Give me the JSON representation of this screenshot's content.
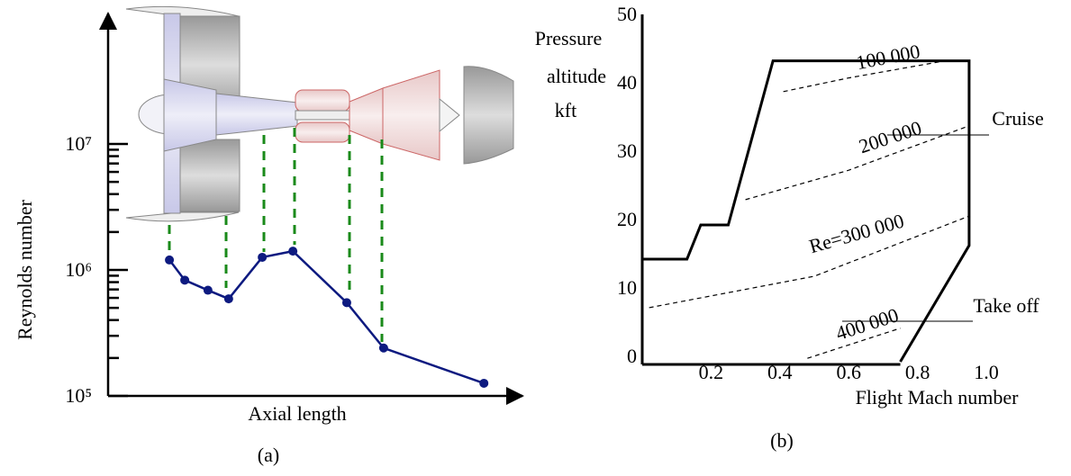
{
  "chart_data": [
    {
      "type": "line",
      "ylabel": "Reynolds number",
      "xlabel": "Axial length",
      "caption": "(a)",
      "log_y": true,
      "color": "#0d1a80",
      "xlim": [
        0,
        1
      ],
      "x": [
        0.148,
        0.185,
        0.241,
        0.291,
        0.372,
        0.446,
        0.576,
        0.665,
        0.907
      ],
      "values": [
        1200000,
        830000,
        690000,
        590000,
        1260000,
        1410000,
        550000,
        240000,
        126000
      ],
      "ylim": [
        100000,
        100000000
      ],
      "yticks": [
        {
          "value": 100000,
          "label": "10⁵"
        },
        {
          "value": 1000000,
          "label": "10⁶"
        },
        {
          "value": 10000000,
          "label": "10⁷"
        }
      ],
      "yticks_minor": [
        200000,
        300000,
        400000,
        500000,
        600000,
        700000,
        800000,
        900000,
        2000000,
        3000000,
        4000000,
        5000000,
        6000000,
        7000000,
        8000000,
        9000000
      ]
    },
    {
      "type": "envelope",
      "ylabel": [
        "Pressure",
        "altitude",
        "kft"
      ],
      "xlabel": "Flight Mach number",
      "caption": "(b)",
      "xlim": [
        0,
        1
      ],
      "ylim": [
        0,
        50
      ],
      "xticks": [
        0.2,
        0.4,
        0.6,
        0.8,
        {
          "value": 1,
          "label": "1.0"
        }
      ],
      "yticks": [
        0,
        10,
        20,
        30,
        40,
        50
      ],
      "envelope": {
        "mach": [
          0,
          0.13,
          0.17,
          0.25,
          0.38,
          0.95,
          0.95,
          0.75
        ],
        "altitude": [
          15,
          15,
          20,
          20,
          44,
          44,
          17,
          0
        ]
      },
      "re_lines": [
        {
          "label": "100 000",
          "mach": [
            0.41,
            0.6,
            0.88
          ],
          "altitude": [
            39.5,
            41.5,
            44
          ]
        },
        {
          "label": "200 000",
          "mach": [
            0.3,
            0.6,
            0.95
          ],
          "altitude": [
            23.7,
            28,
            34.5
          ]
        },
        {
          "label": "Re=300 000",
          "mach": [
            0.02,
            0.5,
            0.95
          ],
          "altitude": [
            7.9,
            12.5,
            21.3
          ]
        },
        {
          "label": "400 000",
          "mach": [
            0.48,
            0.75
          ],
          "altitude": [
            0.5,
            4.9
          ]
        }
      ],
      "annotations": [
        "Cruise",
        "Take off"
      ]
    }
  ]
}
